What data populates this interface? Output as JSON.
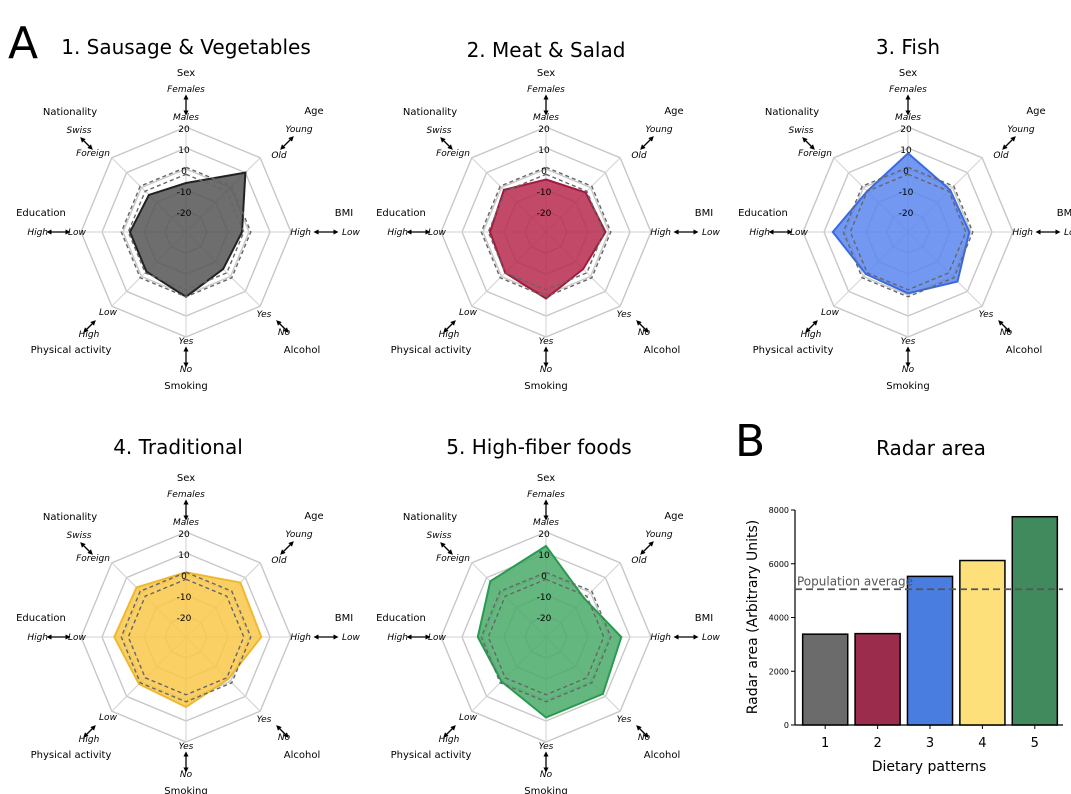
{
  "figure": {
    "panel_a_label": "A",
    "panel_b_label": "B"
  },
  "chart_data": [
    {
      "type": "radar",
      "title": "1. Sausage & Vegetables",
      "color": "#555555",
      "edge_color": "#222222",
      "axes": [
        {
          "name": "Sex",
          "pole_outer": "Females",
          "pole_inner": "Males"
        },
        {
          "name": "Age",
          "pole_outer": "Young",
          "pole_inner": "Old"
        },
        {
          "name": "BMI",
          "pole_outer": "High",
          "pole_inner": "Low"
        },
        {
          "name": "Alcohol",
          "pole_outer": "Yes",
          "pole_inner": "No"
        },
        {
          "name": "Smoking",
          "pole_outer": "Yes",
          "pole_inner": "No"
        },
        {
          "name": "Physical activity",
          "pole_outer": "Low",
          "pole_inner": "High"
        },
        {
          "name": "Education",
          "pole_outer": "High",
          "pole_inner": "Low"
        },
        {
          "name": "Nationality",
          "pole_outer": "Swiss",
          "pole_inner": "Foreign"
        }
      ],
      "ring_ticks": [
        "20",
        "10",
        "0",
        "-10",
        "-20"
      ],
      "rlim": [
        -40,
        20
      ],
      "values": [
        -12,
        8,
        -8,
        -10,
        -3,
        -8,
        -8,
        -10
      ],
      "reference_band": [
        -7,
        -3
      ]
    },
    {
      "type": "radar",
      "title": "2. Meat & Salad",
      "color": "#b8294f",
      "edge_color": "#a01c3e",
      "axes": [
        {
          "name": "Sex",
          "pole_outer": "Females",
          "pole_inner": "Males"
        },
        {
          "name": "Age",
          "pole_outer": "Young",
          "pole_inner": "Old"
        },
        {
          "name": "BMI",
          "pole_outer": "High",
          "pole_inner": "Low"
        },
        {
          "name": "Alcohol",
          "pole_outer": "Yes",
          "pole_inner": "No"
        },
        {
          "name": "Smoking",
          "pole_outer": "Yes",
          "pole_inner": "No"
        },
        {
          "name": "Physical activity",
          "pole_outer": "Low",
          "pole_inner": "High"
        },
        {
          "name": "Education",
          "pole_outer": "High",
          "pole_inner": "Low"
        },
        {
          "name": "Nationality",
          "pole_outer": "Swiss",
          "pole_inner": "Foreign"
        }
      ],
      "ring_ticks": [
        "20",
        "10",
        "0",
        "-10",
        "-20"
      ],
      "rlim": [
        -40,
        20
      ],
      "values": [
        -10,
        -8,
        -6,
        -10,
        -2,
        -7,
        -8,
        -6
      ],
      "reference_band": [
        -7,
        -3
      ]
    },
    {
      "type": "radar",
      "title": "3. Fish",
      "color": "#5a86f0",
      "edge_color": "#3a6ae0",
      "axes": [
        {
          "name": "Sex",
          "pole_outer": "Females",
          "pole_inner": "Males"
        },
        {
          "name": "Age",
          "pole_outer": "Young",
          "pole_inner": "Old"
        },
        {
          "name": "BMI",
          "pole_outer": "High",
          "pole_inner": "Low"
        },
        {
          "name": "Alcohol",
          "pole_outer": "Yes",
          "pole_inner": "No"
        },
        {
          "name": "Smoking",
          "pole_outer": "Yes",
          "pole_inner": "No"
        },
        {
          "name": "Physical activity",
          "pole_outer": "Low",
          "pole_inner": "High"
        },
        {
          "name": "Education",
          "pole_outer": "High",
          "pole_inner": "Low"
        },
        {
          "name": "Nationality",
          "pole_outer": "Swiss",
          "pole_inner": "Foreign"
        }
      ],
      "ring_ticks": [
        "20",
        "10",
        "0",
        "-10",
        "-20"
      ],
      "rlim": [
        -40,
        20
      ],
      "values": [
        5,
        -6,
        -5,
        0,
        -5,
        -6,
        3,
        -7
      ],
      "reference_band": [
        -7,
        -3
      ]
    },
    {
      "type": "radar",
      "title": "4. Traditional",
      "color": "#f9c84a",
      "edge_color": "#f0b830",
      "axes": [
        {
          "name": "Sex",
          "pole_outer": "Females",
          "pole_inner": "Males"
        },
        {
          "name": "Age",
          "pole_outer": "Young",
          "pole_inner": "Old"
        },
        {
          "name": "BMI",
          "pole_outer": "High",
          "pole_inner": "Low"
        },
        {
          "name": "Alcohol",
          "pole_outer": "Yes",
          "pole_inner": "No"
        },
        {
          "name": "Smoking",
          "pole_outer": "Yes",
          "pole_inner": "No"
        },
        {
          "name": "Physical activity",
          "pole_outer": "Low",
          "pole_inner": "High"
        },
        {
          "name": "Education",
          "pole_outer": "High",
          "pole_inner": "Low"
        },
        {
          "name": "Nationality",
          "pole_outer": "Swiss",
          "pole_inner": "Foreign"
        }
      ],
      "ring_ticks": [
        "20",
        "10",
        "0",
        "-10",
        "-20"
      ],
      "rlim": [
        -40,
        20
      ],
      "values": [
        -3,
        4,
        3,
        -6,
        0,
        -2,
        1,
        0
      ],
      "reference_band": [
        -7,
        -3
      ]
    },
    {
      "type": "radar",
      "title": "5. High-fiber foods",
      "color": "#4aaa6a",
      "edge_color": "#2a9a50",
      "axes": [
        {
          "name": "Sex",
          "pole_outer": "Females",
          "pole_inner": "Males"
        },
        {
          "name": "Age",
          "pole_outer": "Young",
          "pole_inner": "Old"
        },
        {
          "name": "BMI",
          "pole_outer": "High",
          "pole_inner": "Low"
        },
        {
          "name": "Alcohol",
          "pole_outer": "Yes",
          "pole_inner": "No"
        },
        {
          "name": "Smoking",
          "pole_outer": "Yes",
          "pole_inner": "No"
        },
        {
          "name": "Physical activity",
          "pole_outer": "Low",
          "pole_inner": "High"
        },
        {
          "name": "Education",
          "pole_outer": "High",
          "pole_inner": "Low"
        },
        {
          "name": "Nationality",
          "pole_outer": "Swiss",
          "pole_inner": "Foreign"
        }
      ],
      "ring_ticks": [
        "20",
        "10",
        "0",
        "-10",
        "-20"
      ],
      "rlim": [
        -40,
        20
      ],
      "values": [
        12,
        -9,
        3,
        6,
        6,
        -4,
        -1,
        5
      ],
      "reference_band": [
        -7,
        -3
      ]
    },
    {
      "type": "bar",
      "title": "Radar area",
      "categories": [
        "1",
        "2",
        "3",
        "4",
        "5"
      ],
      "values": [
        3380,
        3400,
        5530,
        6120,
        7750
      ],
      "colors": [
        "#6b6b6b",
        "#9c2c4c",
        "#4a7de0",
        "#fde07a",
        "#418a5e"
      ],
      "xlabel": "Dietary patterns",
      "ylabel": "Radar area (Arbitrary Units)",
      "ylim": [
        0,
        8000
      ],
      "yticks": [
        "0",
        "2000",
        "4000",
        "6000",
        "8000"
      ],
      "reference_line": {
        "value": 5050,
        "label": "Population average"
      },
      "grid": false
    }
  ]
}
